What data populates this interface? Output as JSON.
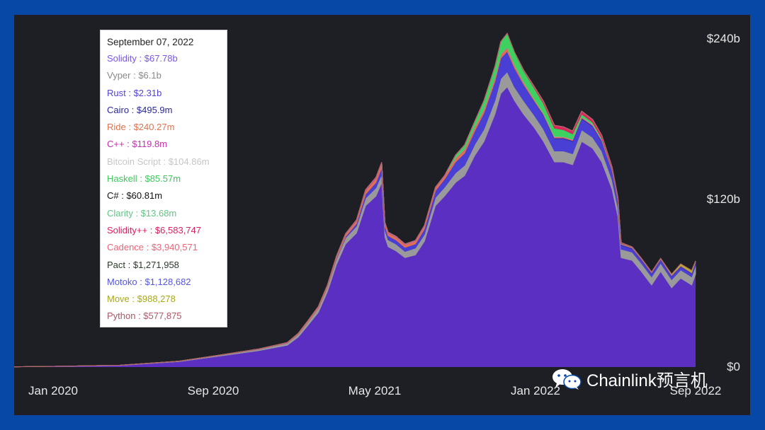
{
  "chart_data": {
    "type": "area",
    "stacked": true,
    "y_ticks": [
      "$240b",
      "$120b",
      "$0"
    ],
    "x_ticks": [
      "Jan 2020",
      "Sep 2020",
      "May 2021",
      "Jan 2022",
      "Sep 2022"
    ],
    "ylim": [
      0,
      240
    ],
    "y_unit": "b",
    "xlim": [
      "2019-10-20",
      "2022-09-07"
    ],
    "x": [
      "2019-10-20",
      "2020-01-01",
      "2020-04-01",
      "2020-07-01",
      "2020-09-01",
      "2020-11-01",
      "2020-12-15",
      "2021-01-01",
      "2021-01-15",
      "2021-02-01",
      "2021-02-15",
      "2021-03-01",
      "2021-03-15",
      "2021-04-01",
      "2021-04-15",
      "2021-05-01",
      "2021-05-10",
      "2021-05-15",
      "2021-05-20",
      "2021-06-01",
      "2021-06-15",
      "2021-07-01",
      "2021-07-15",
      "2021-08-01",
      "2021-08-15",
      "2021-09-01",
      "2021-09-15",
      "2021-10-01",
      "2021-10-15",
      "2021-11-01",
      "2021-11-10",
      "2021-11-20",
      "2021-12-01",
      "2021-12-15",
      "2022-01-01",
      "2022-01-15",
      "2022-02-01",
      "2022-02-15",
      "2022-03-01",
      "2022-03-15",
      "2022-04-01",
      "2022-04-15",
      "2022-05-01",
      "2022-05-10",
      "2022-05-15",
      "2022-06-01",
      "2022-06-15",
      "2022-07-01",
      "2022-07-15",
      "2022-08-01",
      "2022-08-15",
      "2022-09-01",
      "2022-09-07"
    ],
    "series": [
      {
        "name": "Solidity",
        "color": "#5b2fc2",
        "values": [
          0.2,
          0.5,
          1.2,
          4,
          8,
          12,
          16,
          22,
          30,
          40,
          55,
          75,
          90,
          98,
          118,
          125,
          135,
          95,
          88,
          85,
          80,
          82,
          92,
          118,
          125,
          135,
          140,
          155,
          165,
          185,
          200,
          205,
          195,
          185,
          175,
          165,
          150,
          150,
          148,
          165,
          160,
          150,
          130,
          110,
          80,
          78,
          70,
          60,
          70,
          58,
          65,
          60,
          68
        ]
      },
      {
        "name": "Vyper",
        "color": "#9a9a9a",
        "values": [
          0.02,
          0.05,
          0.1,
          0.3,
          0.6,
          1,
          1.5,
          2,
          2.5,
          3,
          3.5,
          4,
          4.5,
          5,
          5.5,
          6,
          6,
          5,
          5,
          5,
          4.5,
          5,
          5,
          6,
          6.5,
          7,
          7.5,
          8,
          9,
          10,
          11,
          11,
          10,
          10,
          9,
          9,
          8,
          8,
          8,
          8.5,
          8,
          8,
          7,
          6.5,
          6.2,
          6,
          6,
          6,
          6,
          6,
          6,
          6,
          6.1
        ]
      },
      {
        "name": "Rust",
        "color": "#4a3fd4",
        "values": [
          0,
          0,
          0,
          0,
          0,
          0,
          0,
          0,
          0,
          0,
          0,
          0.5,
          1,
          2,
          3,
          4,
          5,
          3,
          3,
          3,
          3,
          3,
          4,
          5,
          6,
          8,
          9,
          10,
          12,
          14,
          15,
          15,
          14,
          12,
          10,
          10,
          9,
          9,
          9,
          8,
          8,
          7,
          6,
          5,
          3,
          2.5,
          2.4,
          2.3,
          2.3,
          2.3,
          2.3,
          2.3,
          2.31
        ]
      },
      {
        "name": "Cairo",
        "color": "#2a2aa0",
        "values": [
          0,
          0,
          0,
          0,
          0,
          0,
          0,
          0,
          0,
          0,
          0,
          0,
          0,
          0,
          0,
          0,
          0,
          0,
          0,
          0,
          0,
          0,
          0,
          0,
          0,
          0,
          0,
          0,
          0,
          0,
          0,
          0,
          0,
          0,
          0.5,
          0.6,
          0.6,
          0.6,
          0.6,
          0.6,
          0.6,
          0.6,
          0.6,
          0.5,
          0.5,
          0.5,
          0.5,
          0.5,
          0.5,
          0.5,
          0.5,
          0.5,
          0.496
        ]
      },
      {
        "name": "Ride",
        "color": "#e07050",
        "values": [
          0,
          0.01,
          0.02,
          0.05,
          0.1,
          0.2,
          0.3,
          0.5,
          0.6,
          0.8,
          1,
          1.2,
          1.5,
          2,
          2.5,
          3,
          3,
          2,
          2,
          2,
          2,
          2,
          2,
          2,
          2,
          2.5,
          2.5,
          2.5,
          2.5,
          2.5,
          2.5,
          2.5,
          2,
          1.5,
          1,
          0.8,
          0.7,
          0.6,
          0.6,
          0.6,
          0.5,
          0.5,
          0.4,
          0.3,
          0.3,
          0.3,
          0.3,
          0.25,
          0.25,
          0.25,
          0.25,
          0.24,
          0.24
        ]
      },
      {
        "name": "C++",
        "color": "#c832b4",
        "values": [
          0,
          0,
          0,
          0.01,
          0.02,
          0.03,
          0.05,
          0.1,
          0.1,
          0.2,
          0.2,
          0.3,
          0.3,
          0.4,
          0.5,
          0.5,
          0.5,
          0.4,
          0.4,
          0.4,
          0.3,
          0.3,
          0.3,
          0.3,
          0.3,
          0.3,
          0.3,
          0.3,
          0.3,
          0.3,
          0.3,
          0.3,
          0.3,
          0.2,
          0.2,
          0.2,
          0.2,
          0.2,
          0.2,
          0.2,
          0.2,
          0.2,
          0.15,
          0.12,
          0.12,
          0.12,
          0.12,
          0.12,
          0.12,
          0.12,
          0.12,
          0.12,
          0.12
        ]
      },
      {
        "name": "Bitcoin Script",
        "color": "#c8c8c8",
        "values": [
          0,
          0,
          0,
          0.01,
          0.02,
          0.03,
          0.05,
          0.1,
          0.1,
          0.2,
          0.2,
          0.2,
          0.2,
          0.2,
          0.2,
          0.2,
          0.2,
          0.2,
          0.2,
          0.2,
          0.2,
          0.2,
          0.2,
          0.2,
          0.2,
          0.2,
          0.2,
          0.2,
          0.2,
          0.2,
          0.2,
          0.2,
          0.2,
          0.2,
          0.2,
          0.2,
          0.2,
          0.15,
          0.15,
          0.15,
          0.15,
          0.15,
          0.12,
          0.11,
          0.1,
          0.1,
          0.1,
          0.1,
          0.1,
          0.1,
          0.1,
          0.1,
          0.105
        ]
      },
      {
        "name": "Haskell",
        "color": "#3dd15f",
        "values": [
          0,
          0,
          0,
          0,
          0,
          0,
          0,
          0,
          0,
          0,
          0,
          0,
          0,
          0,
          0,
          0,
          0,
          0,
          0,
          0,
          0,
          0,
          0,
          0,
          0,
          2,
          3,
          4,
          6,
          8,
          9,
          10,
          9,
          8,
          8,
          7,
          6,
          5,
          4,
          2,
          1.5,
          1,
          0.5,
          0.3,
          0.2,
          0.1,
          0.1,
          0.1,
          0.09,
          0.09,
          0.09,
          0.09,
          0.086
        ]
      },
      {
        "name": "C#",
        "color": "#222222",
        "values": [
          0,
          0,
          0,
          0,
          0,
          0,
          0,
          0,
          0,
          0,
          0,
          0,
          0,
          0,
          0,
          0,
          0,
          0,
          0,
          0,
          0,
          0,
          0,
          0,
          0,
          0,
          0,
          0,
          0,
          0,
          0,
          0,
          0,
          0,
          0,
          0.05,
          0.06,
          0.06,
          0.06,
          0.06,
          0.06,
          0.06,
          0.06,
          0.06,
          0.06,
          0.06,
          0.06,
          0.06,
          0.06,
          0.06,
          0.06,
          0.06,
          0.061
        ]
      },
      {
        "name": "Clarity",
        "color": "#66cc88",
        "values": [
          0,
          0,
          0,
          0,
          0,
          0,
          0,
          0,
          0,
          0,
          0,
          0,
          0.02,
          0.03,
          0.03,
          0.03,
          0.03,
          0.02,
          0.02,
          0.02,
          0.02,
          0.02,
          0.02,
          0.02,
          0.02,
          0.02,
          0.02,
          0.02,
          0.02,
          0.03,
          0.03,
          0.03,
          0.03,
          0.02,
          0.02,
          0.02,
          0.02,
          0.02,
          0.02,
          0.02,
          0.02,
          0.02,
          0.02,
          0.02,
          0.02,
          0.015,
          0.014,
          0.014,
          0.014,
          0.014,
          0.014,
          0.014,
          0.014
        ]
      },
      {
        "name": "Solidity++",
        "color": "#e0245e",
        "values": [
          0,
          0,
          0,
          0,
          0,
          0,
          0,
          0,
          0,
          0,
          0,
          0,
          0,
          0,
          0,
          0,
          0,
          0,
          0,
          0,
          0,
          0,
          0,
          0,
          0,
          0,
          0,
          0,
          0,
          0,
          0,
          0,
          0,
          0.5,
          1,
          1.5,
          2,
          2,
          2,
          2,
          2,
          2,
          1.5,
          1,
          0.5,
          0.2,
          0.1,
          0.05,
          0.02,
          0.01,
          0.008,
          0.007,
          0.0066
        ]
      },
      {
        "name": "Cadence",
        "color": "#ff6b7a",
        "values": [
          0,
          0,
          0,
          0,
          0,
          0,
          0,
          0,
          0,
          0,
          0,
          0,
          0,
          0,
          0,
          0,
          0,
          0,
          0,
          0,
          0,
          0,
          0,
          0,
          0,
          0,
          0,
          0,
          0.01,
          0.01,
          0.01,
          0.01,
          0.01,
          0.01,
          0.01,
          0.01,
          0.01,
          0.01,
          0.01,
          0.01,
          0.01,
          0.01,
          0.01,
          0.005,
          0.005,
          0.004,
          0.004,
          0.004,
          0.004,
          0.004,
          0.004,
          0.004,
          0.0039
        ]
      },
      {
        "name": "Pact",
        "color": "#2f3f2f",
        "values": [
          0,
          0,
          0,
          0,
          0,
          0,
          0,
          0,
          0,
          0,
          0,
          0,
          0,
          0,
          0,
          0,
          0,
          0,
          0,
          0,
          0,
          0,
          0,
          0,
          0,
          0,
          0,
          0,
          0,
          0.002,
          0.002,
          0.002,
          0.002,
          0.002,
          0.002,
          0.002,
          0.002,
          0.002,
          0.002,
          0.002,
          0.002,
          0.002,
          0.002,
          0.002,
          0.0015,
          0.0013,
          0.0013,
          0.0013,
          0.0013,
          0.0013,
          0.0013,
          0.0013,
          0.00127
        ]
      },
      {
        "name": "Motoko",
        "color": "#5a5ae6",
        "values": [
          0,
          0,
          0,
          0,
          0,
          0,
          0,
          0,
          0,
          0,
          0,
          0,
          0,
          0,
          0,
          0,
          0,
          0,
          0,
          0,
          0,
          0,
          0,
          0,
          0,
          0,
          0,
          0,
          0,
          0,
          0,
          0,
          0,
          0,
          0.002,
          0.002,
          0.002,
          0.002,
          0.002,
          0.002,
          0.002,
          0.002,
          0.002,
          0.002,
          0.0015,
          0.0012,
          0.0012,
          0.0011,
          0.0011,
          0.0011,
          0.0011,
          0.0011,
          0.00113
        ]
      },
      {
        "name": "Move",
        "color": "#b5b520",
        "values": [
          0,
          0,
          0,
          0,
          0,
          0,
          0,
          0,
          0,
          0,
          0,
          0,
          0,
          0,
          0,
          0,
          0,
          0,
          0,
          0,
          0,
          0,
          0,
          0,
          0,
          0,
          0,
          0,
          0,
          0,
          0,
          0,
          0,
          0,
          0,
          0,
          0,
          0,
          0,
          0,
          0,
          0,
          0,
          0,
          0,
          0,
          0,
          0,
          0,
          0.5,
          1,
          1.2,
          0.000988
        ]
      },
      {
        "name": "Python",
        "color": "#b86070",
        "values": [
          0,
          0,
          0,
          0,
          0,
          0,
          0,
          0,
          0,
          0,
          0,
          0,
          0,
          0,
          0,
          0,
          0,
          0,
          0,
          0,
          0,
          0,
          0,
          0,
          0,
          0,
          0,
          0,
          0,
          0,
          0,
          0,
          0,
          0,
          0,
          0,
          0,
          0,
          0,
          0,
          0,
          0,
          0,
          0,
          0.001,
          0.001,
          0.001,
          0.001,
          0.001,
          0.0006,
          0.0006,
          0.0006,
          0.000578
        ]
      }
    ],
    "tooltip": {
      "date": "September 07, 2022",
      "rows": [
        {
          "label": "Solidity : $67.78b",
          "color": "#7b55e6"
        },
        {
          "label": "Vyper : $6.1b",
          "color": "#8a8a8a"
        },
        {
          "label": "Rust : $2.31b",
          "color": "#5244d9"
        },
        {
          "label": "Cairo : $495.9m",
          "color": "#2828a0"
        },
        {
          "label": "Ride : $240.27m",
          "color": "#e0734f"
        },
        {
          "label": "C++ : $119.8m",
          "color": "#c42fb0"
        },
        {
          "label": "Bitcoin Script : $104.86m",
          "color": "#c6c6c6"
        },
        {
          "label": "Haskell : $85.57m",
          "color": "#3cc95c"
        },
        {
          "label": "C# : $60.81m",
          "color": "#111111"
        },
        {
          "label": "Clarity : $13.68m",
          "color": "#63c486"
        },
        {
          "label": "Solidity++ : $6,583,747",
          "color": "#dc2160"
        },
        {
          "label": "Cadence : $3,940,571",
          "color": "#f06478"
        },
        {
          "label": "Pact : $1,271,958",
          "color": "#2c3a2c"
        },
        {
          "label": "Motoko : $1,128,682",
          "color": "#5656e0"
        },
        {
          "label": "Move : $988,278",
          "color": "#a8a818"
        },
        {
          "label": "Python : $577,875",
          "color": "#ae5868"
        }
      ]
    },
    "grid": false
  },
  "watermark": {
    "text": "Chainlink预言机",
    "icon": "wechat-icon"
  },
  "colors": {
    "frame_border": "#0747a6",
    "plot_background": "#1e1f24"
  }
}
